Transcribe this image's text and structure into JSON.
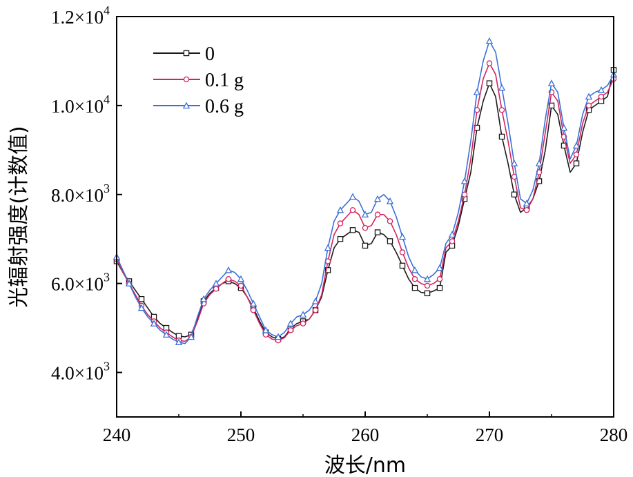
{
  "chart_data": {
    "type": "line",
    "title": "",
    "xlabel": "波长/nm",
    "ylabel": "光辐射强度(计数值)",
    "xlim": [
      240,
      280
    ],
    "ylim": [
      3000,
      12000
    ],
    "x_ticks": [
      240,
      250,
      260,
      270,
      280
    ],
    "x_tick_labels": [
      "240",
      "250",
      "260",
      "270",
      "280"
    ],
    "y_ticks": [
      {
        "value": 4000,
        "mantissa": "4.0×10",
        "exp": "3"
      },
      {
        "value": 6000,
        "mantissa": "6.0×10",
        "exp": "3"
      },
      {
        "value": 8000,
        "mantissa": "8.0×10",
        "exp": "3"
      },
      {
        "value": 10000,
        "mantissa": "1.0×10",
        "exp": "4"
      },
      {
        "value": 12000,
        "mantissa": "1.2×10",
        "exp": "4"
      }
    ],
    "legend_position": "top-left",
    "grid": false,
    "series": [
      {
        "name": "0",
        "color": "#1a1a1a",
        "marker": "square",
        "points": [
          [
            240,
            6500
          ],
          [
            240.5,
            6250
          ],
          [
            241,
            6050
          ],
          [
            241.5,
            5850
          ],
          [
            242,
            5650
          ],
          [
            242.5,
            5450
          ],
          [
            243,
            5250
          ],
          [
            243.5,
            5100
          ],
          [
            244,
            5000
          ],
          [
            244.5,
            4900
          ],
          [
            245,
            4820
          ],
          [
            245.5,
            4800
          ],
          [
            246,
            4850
          ],
          [
            246.5,
            5200
          ],
          [
            247,
            5600
          ],
          [
            247.5,
            5780
          ],
          [
            248,
            5900
          ],
          [
            248.5,
            6000
          ],
          [
            249,
            6050
          ],
          [
            249.5,
            6000
          ],
          [
            250,
            5900
          ],
          [
            250.5,
            5700
          ],
          [
            251,
            5450
          ],
          [
            251.5,
            5150
          ],
          [
            252,
            4900
          ],
          [
            252.5,
            4800
          ],
          [
            253,
            4750
          ],
          [
            253.5,
            4800
          ],
          [
            254,
            4980
          ],
          [
            254.5,
            5100
          ],
          [
            255,
            5150
          ],
          [
            255.5,
            5200
          ],
          [
            256,
            5400
          ],
          [
            256.5,
            5700
          ],
          [
            257,
            6300
          ],
          [
            257.5,
            6800
          ],
          [
            258,
            7000
          ],
          [
            258.5,
            7100
          ],
          [
            259,
            7200
          ],
          [
            259.5,
            7150
          ],
          [
            260,
            6850
          ],
          [
            260.5,
            6900
          ],
          [
            261,
            7150
          ],
          [
            261.5,
            7100
          ],
          [
            262,
            6950
          ],
          [
            262.5,
            6700
          ],
          [
            263,
            6400
          ],
          [
            263.5,
            6100
          ],
          [
            264,
            5900
          ],
          [
            264.5,
            5800
          ],
          [
            265,
            5780
          ],
          [
            265.5,
            5830
          ],
          [
            266,
            5900
          ],
          [
            266.5,
            6700
          ],
          [
            267,
            6850
          ],
          [
            267.5,
            7300
          ],
          [
            268,
            7900
          ],
          [
            268.5,
            8500
          ],
          [
            269,
            9500
          ],
          [
            269.5,
            10100
          ],
          [
            270,
            10500
          ],
          [
            270.5,
            10200
          ],
          [
            271,
            9300
          ],
          [
            271.5,
            8700
          ],
          [
            272,
            8000
          ],
          [
            272.5,
            7600
          ],
          [
            273,
            7700
          ],
          [
            273.5,
            7900
          ],
          [
            274,
            8300
          ],
          [
            274.5,
            9000
          ],
          [
            275,
            10000
          ],
          [
            275.5,
            9800
          ],
          [
            276,
            9100
          ],
          [
            276.5,
            8500
          ],
          [
            277,
            8700
          ],
          [
            277.5,
            9400
          ],
          [
            278,
            9900
          ],
          [
            278.5,
            10000
          ],
          [
            279,
            10100
          ],
          [
            279.5,
            10200
          ],
          [
            280,
            10800
          ]
        ]
      },
      {
        "name": "0.1 g",
        "color": "#d4235f",
        "marker": "circle",
        "points": [
          [
            240,
            6550
          ],
          [
            240.5,
            6250
          ],
          [
            241,
            6000
          ],
          [
            241.5,
            5750
          ],
          [
            242,
            5500
          ],
          [
            242.5,
            5300
          ],
          [
            243,
            5150
          ],
          [
            243.5,
            5000
          ],
          [
            244,
            4900
          ],
          [
            244.5,
            4800
          ],
          [
            245,
            4720
          ],
          [
            245.5,
            4700
          ],
          [
            246,
            4800
          ],
          [
            246.5,
            5150
          ],
          [
            247,
            5550
          ],
          [
            247.5,
            5750
          ],
          [
            248,
            5880
          ],
          [
            248.5,
            6000
          ],
          [
            249,
            6100
          ],
          [
            249.5,
            6050
          ],
          [
            250,
            5950
          ],
          [
            250.5,
            5700
          ],
          [
            251,
            5400
          ],
          [
            251.5,
            5100
          ],
          [
            252,
            4850
          ],
          [
            252.5,
            4750
          ],
          [
            253,
            4720
          ],
          [
            253.5,
            4780
          ],
          [
            254,
            4950
          ],
          [
            254.5,
            5050
          ],
          [
            255,
            5100
          ],
          [
            255.5,
            5200
          ],
          [
            256,
            5400
          ],
          [
            256.5,
            5750
          ],
          [
            257,
            6500
          ],
          [
            257.5,
            7100
          ],
          [
            258,
            7350
          ],
          [
            258.5,
            7500
          ],
          [
            259,
            7650
          ],
          [
            259.5,
            7550
          ],
          [
            260,
            7250
          ],
          [
            260.5,
            7300
          ],
          [
            261,
            7550
          ],
          [
            261.5,
            7550
          ],
          [
            262,
            7400
          ],
          [
            262.5,
            7100
          ],
          [
            263,
            6700
          ],
          [
            263.5,
            6350
          ],
          [
            264,
            6100
          ],
          [
            264.5,
            6000
          ],
          [
            265,
            5950
          ],
          [
            265.5,
            6000
          ],
          [
            266,
            6100
          ],
          [
            266.5,
            6800
          ],
          [
            267,
            6950
          ],
          [
            267.5,
            7400
          ],
          [
            268,
            8000
          ],
          [
            268.5,
            8800
          ],
          [
            269,
            9900
          ],
          [
            269.5,
            10600
          ],
          [
            270,
            10950
          ],
          [
            270.5,
            10700
          ],
          [
            271,
            9900
          ],
          [
            271.5,
            9200
          ],
          [
            272,
            8400
          ],
          [
            272.5,
            7700
          ],
          [
            273,
            7650
          ],
          [
            273.5,
            7900
          ],
          [
            274,
            8500
          ],
          [
            274.5,
            9400
          ],
          [
            275,
            10300
          ],
          [
            275.5,
            10100
          ],
          [
            276,
            9300
          ],
          [
            276.5,
            8700
          ],
          [
            277,
            8900
          ],
          [
            277.5,
            9600
          ],
          [
            278,
            10000
          ],
          [
            278.5,
            10100
          ],
          [
            279,
            10200
          ],
          [
            279.5,
            10300
          ],
          [
            280,
            10600
          ]
        ]
      },
      {
        "name": "0.6 g",
        "color": "#3a6fd8",
        "marker": "triangle",
        "points": [
          [
            240,
            6600
          ],
          [
            240.5,
            6300
          ],
          [
            241,
            6000
          ],
          [
            241.5,
            5700
          ],
          [
            242,
            5450
          ],
          [
            242.5,
            5250
          ],
          [
            243,
            5100
          ],
          [
            243.5,
            4950
          ],
          [
            244,
            4850
          ],
          [
            244.5,
            4750
          ],
          [
            245,
            4680
          ],
          [
            245.5,
            4650
          ],
          [
            246,
            4800
          ],
          [
            246.5,
            5250
          ],
          [
            247,
            5650
          ],
          [
            247.5,
            5850
          ],
          [
            248,
            6000
          ],
          [
            248.5,
            6150
          ],
          [
            249,
            6300
          ],
          [
            249.5,
            6250
          ],
          [
            250,
            6100
          ],
          [
            250.5,
            5850
          ],
          [
            251,
            5550
          ],
          [
            251.5,
            5250
          ],
          [
            252,
            4950
          ],
          [
            252.5,
            4850
          ],
          [
            253,
            4800
          ],
          [
            253.5,
            4900
          ],
          [
            254,
            5100
          ],
          [
            254.5,
            5250
          ],
          [
            255,
            5300
          ],
          [
            255.5,
            5400
          ],
          [
            256,
            5600
          ],
          [
            256.5,
            6000
          ],
          [
            257,
            6800
          ],
          [
            257.5,
            7400
          ],
          [
            258,
            7650
          ],
          [
            258.5,
            7800
          ],
          [
            259,
            7950
          ],
          [
            259.5,
            7850
          ],
          [
            260,
            7550
          ],
          [
            260.5,
            7600
          ],
          [
            261,
            7900
          ],
          [
            261.5,
            8000
          ],
          [
            262,
            7850
          ],
          [
            262.5,
            7500
          ],
          [
            263,
            7050
          ],
          [
            263.5,
            6600
          ],
          [
            264,
            6300
          ],
          [
            264.5,
            6150
          ],
          [
            265,
            6100
          ],
          [
            265.5,
            6200
          ],
          [
            266,
            6350
          ],
          [
            266.5,
            6900
          ],
          [
            267,
            7100
          ],
          [
            267.5,
            7600
          ],
          [
            268,
            8300
          ],
          [
            268.5,
            9200
          ],
          [
            269,
            10300
          ],
          [
            269.5,
            11000
          ],
          [
            270,
            11450
          ],
          [
            270.5,
            11200
          ],
          [
            271,
            10400
          ],
          [
            271.5,
            9600
          ],
          [
            272,
            8700
          ],
          [
            272.5,
            7900
          ],
          [
            273,
            7800
          ],
          [
            273.5,
            8100
          ],
          [
            274,
            8700
          ],
          [
            274.5,
            9700
          ],
          [
            275,
            10500
          ],
          [
            275.5,
            10300
          ],
          [
            276,
            9500
          ],
          [
            276.5,
            8800
          ],
          [
            277,
            9100
          ],
          [
            277.5,
            9800
          ],
          [
            278,
            10200
          ],
          [
            278.5,
            10300
          ],
          [
            279,
            10350
          ],
          [
            279.5,
            10450
          ],
          [
            280,
            10700
          ]
        ]
      }
    ]
  }
}
